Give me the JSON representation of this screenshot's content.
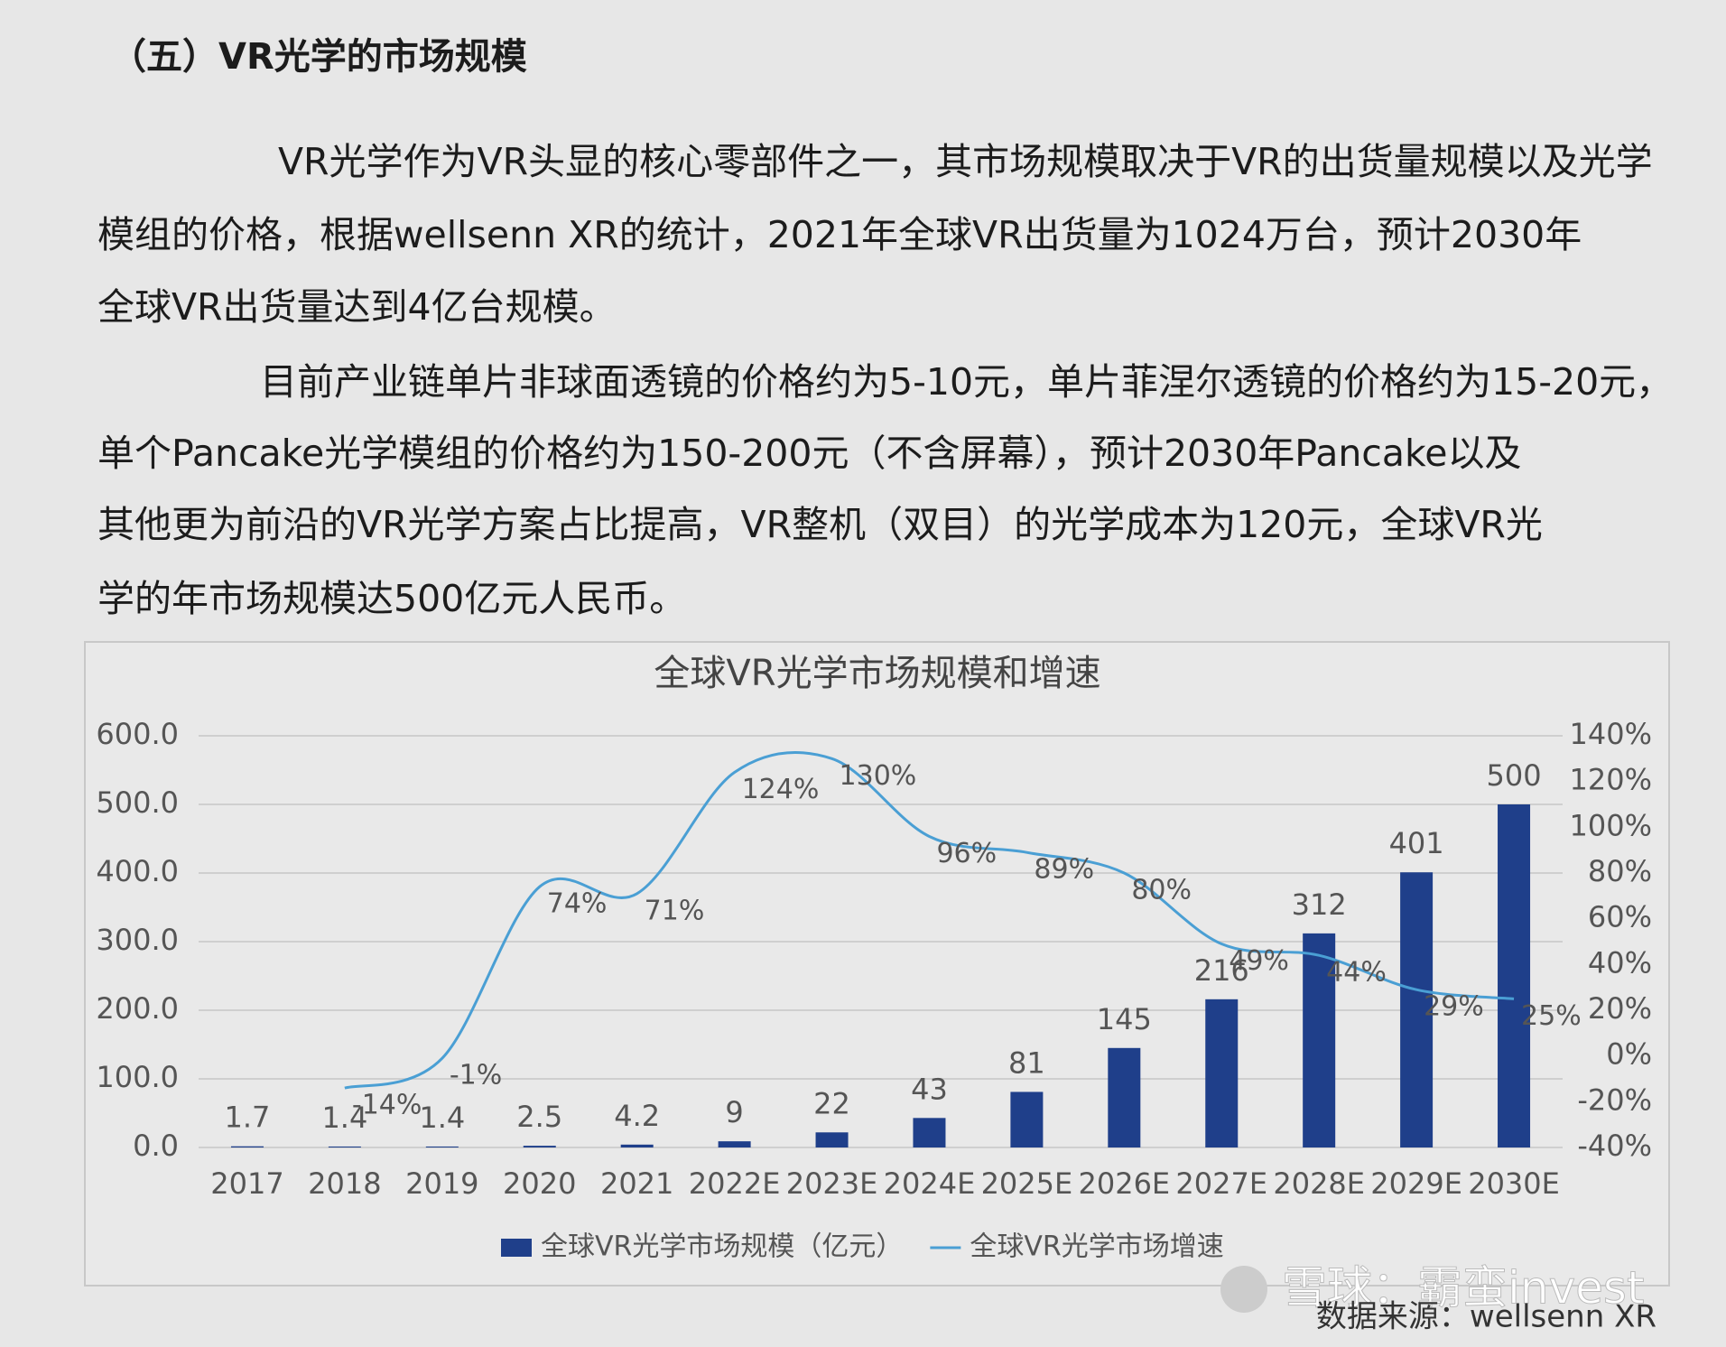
{
  "heading": "（五）VR光学的市场规模",
  "paragraphs": [
    {
      "lines": [
        "VR光学作为VR头显的核心零部件之一，其市场规模取决于VR的出货量规模以及光学",
        "模组的价格，根据wellsenn XR的统计，2021年全球VR出货量为1024万台，预计2030年",
        "全球VR出货量达到4亿台规模。"
      ]
    },
    {
      "lines": [
        "目前产业链单片非球面透镜的价格约为5-10元，单片菲涅尔透镜的价格约为15-20元，",
        "单个Pancake光学模组的价格约为150-200元（不含屏幕），预计2030年Pancake以及",
        "其他更为前沿的VR光学方案占比提高，VR整机（双目）的光学成本为120元，全球VR光",
        "学的年市场规模达500亿元人民币。"
      ]
    }
  ],
  "chart_data": {
    "type": "bar",
    "title": "全球VR光学市场规模和增速",
    "categories": [
      "2017",
      "2018",
      "2019",
      "2020",
      "2021",
      "2022E",
      "2023E",
      "2024E",
      "2025E",
      "2026E",
      "2027E",
      "2028E",
      "2029E",
      "2030E"
    ],
    "series": [
      {
        "name": "全球VR光学市场规模（亿元）",
        "type": "bar",
        "color": "#1f3f8a",
        "values": [
          1.7,
          1.4,
          1.4,
          2.5,
          4.2,
          9,
          22,
          43,
          81,
          145,
          216,
          312,
          401,
          500
        ]
      },
      {
        "name": "全球VR光学市场增速",
        "type": "line",
        "axis": "y2",
        "color": "#4a9fd4",
        "values": [
          null,
          -14,
          -1,
          74,
          71,
          124,
          130,
          96,
          89,
          80,
          49,
          44,
          29,
          25
        ],
        "value_labels": [
          null,
          "-14%",
          "-1%",
          "74%",
          "71%",
          "124%",
          "130%",
          "96%",
          "89%",
          "80%",
          "49%",
          "44%",
          "29%",
          "25%"
        ]
      }
    ],
    "ylim": [
      0,
      600
    ],
    "yticks": [
      {
        "value": 0,
        "label": "0.0"
      },
      {
        "value": 100,
        "label": "100.0"
      },
      {
        "value": 200,
        "label": "200.0"
      },
      {
        "value": 300,
        "label": "300.0"
      },
      {
        "value": 400,
        "label": "400.0"
      },
      {
        "value": 500,
        "label": "500.0"
      },
      {
        "value": 600,
        "label": "600.0"
      }
    ],
    "y2lim": [
      -40,
      140
    ],
    "y2ticks": [
      {
        "value": -40,
        "label": "-40%"
      },
      {
        "value": -20,
        "label": "-20%"
      },
      {
        "value": 0,
        "label": "0%"
      },
      {
        "value": 20,
        "label": "20%"
      },
      {
        "value": 40,
        "label": "40%"
      },
      {
        "value": 60,
        "label": "60%"
      },
      {
        "value": 80,
        "label": "80%"
      },
      {
        "value": 100,
        "label": "100%"
      },
      {
        "value": 120,
        "label": "120%"
      },
      {
        "value": 140,
        "label": "140%"
      }
    ],
    "grid": true,
    "legend": "bottom"
  },
  "source": "数据来源：wellsenn XR",
  "watermark": "雪球：霸蛮invest"
}
